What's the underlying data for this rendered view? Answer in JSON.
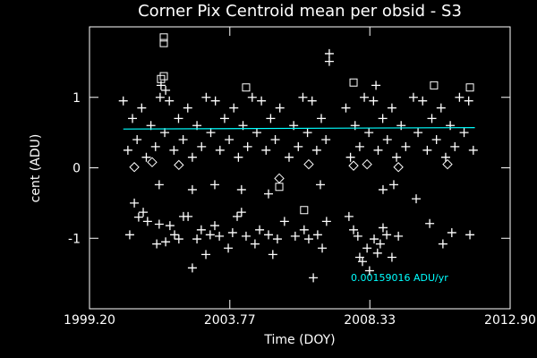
{
  "chart_data": {
    "type": "scatter",
    "title": "Corner Pix Centroid mean per obsid - S3",
    "x_label": "Time (DOY)",
    "y_label": "cent (ADU)",
    "annotation": "0.00159016 ADU/yr",
    "background": "#000000",
    "axis_color": "#ffffff",
    "xlim": [
      1999.2,
      2012.9
    ],
    "xticks": [
      {
        "value": 1999.2,
        "label": "1999.20"
      },
      {
        "value": 2003.77,
        "label": "2003.77"
      },
      {
        "value": 2008.33,
        "label": "2008.33"
      },
      {
        "value": 2012.9,
        "label": "2012.90"
      }
    ],
    "ylim": [
      -2,
      2
    ],
    "yticks": [
      -1,
      0,
      1
    ],
    "series": [
      {
        "marker": "plus",
        "color": "#ffffff",
        "x": [
          2000.3,
          2000.45,
          2000.6,
          2000.75,
          2000.9,
          2001.05,
          2001.2,
          2001.35,
          2001.5,
          2001.65,
          2001.8,
          2001.95,
          2002.1,
          2002.25,
          2002.4,
          2002.55,
          2002.7,
          2002.85,
          2003.0,
          2003.15,
          2003.3,
          2003.45,
          2003.6,
          2003.75,
          2003.9,
          2004.05,
          2004.2,
          2004.35,
          2004.5,
          2004.65,
          2004.8,
          2004.95,
          2005.1,
          2005.25,
          2005.4,
          2005.7,
          2005.85,
          2006.0,
          2006.15,
          2006.3,
          2006.45,
          2006.6,
          2006.75,
          2006.9,
          2007.55,
          2007.7,
          2007.85,
          2008.0,
          2008.15,
          2008.3,
          2008.45,
          2008.6,
          2008.75,
          2008.9,
          2009.05,
          2009.2,
          2009.35,
          2009.5,
          2009.75,
          2009.9,
          2010.05,
          2010.2,
          2010.35,
          2010.5,
          2010.65,
          2010.8,
          2010.95,
          2011.1,
          2011.25,
          2011.4,
          2011.55,
          2011.7
        ],
        "values": [
          0.95,
          0.25,
          0.7,
          0.4,
          0.85,
          0.15,
          0.6,
          0.3,
          1.0,
          0.5,
          0.95,
          0.25,
          0.7,
          0.4,
          0.85,
          0.15,
          0.6,
          0.3,
          1.0,
          0.5,
          0.95,
          0.25,
          0.7,
          0.4,
          0.85,
          0.15,
          0.6,
          0.3,
          1.0,
          0.5,
          0.95,
          0.25,
          0.7,
          0.4,
          0.85,
          0.15,
          0.6,
          0.3,
          1.0,
          0.5,
          0.95,
          0.25,
          0.7,
          0.4,
          0.85,
          0.15,
          0.6,
          0.3,
          1.0,
          0.5,
          0.95,
          0.25,
          0.7,
          0.4,
          0.85,
          0.15,
          0.6,
          0.3,
          1.0,
          0.5,
          0.95,
          0.25,
          0.7,
          0.4,
          0.85,
          0.15,
          0.6,
          0.3,
          1.0,
          0.5,
          0.95,
          0.25
        ]
      },
      {
        "marker": "plus",
        "color": "#ffffff",
        "x": [
          2000.51,
          2000.66,
          2000.8,
          2000.95,
          2001.09,
          2001.39,
          2001.47,
          2001.68,
          2001.82,
          2001.97,
          2002.11,
          2002.26,
          2002.41,
          2002.55,
          2002.7,
          2002.84,
          2002.99,
          2003.13,
          2003.28,
          2003.43,
          2003.72,
          2003.86,
          2004.01,
          2004.15,
          2004.3,
          2004.59,
          2004.74,
          2005.03,
          2005.17,
          2005.32,
          2005.55,
          2005.9,
          2006.19,
          2006.34,
          2006.49,
          2006.63,
          2006.78,
          2006.92,
          2007.65,
          2007.8,
          2007.94,
          2008.0,
          2008.09,
          2008.24,
          2008.32,
          2008.47,
          2008.58,
          2008.67,
          2008.76,
          2008.88,
          2009.05,
          2009.26,
          2009.84,
          2010.28,
          2010.71,
          2011.0,
          2011.59,
          2001.47,
          2002.55,
          2003.28,
          2004.15,
          2005.03,
          2006.72,
          2008.76,
          2009.11,
          2001.53,
          2001.68,
          2007.01,
          2007.01,
          2008.53
        ],
        "values": [
          -0.95,
          -0.5,
          -0.7,
          -0.63,
          -0.76,
          -1.08,
          -0.8,
          -1.05,
          -0.82,
          -0.95,
          -1.01,
          -0.69,
          -0.69,
          -1.42,
          -1.01,
          -0.88,
          -1.23,
          -0.95,
          -0.82,
          -0.97,
          -1.14,
          -0.92,
          -0.69,
          -0.63,
          -0.97,
          -1.08,
          -0.88,
          -0.95,
          -1.23,
          -1.01,
          -0.76,
          -0.97,
          -0.88,
          -1.01,
          -1.56,
          -0.95,
          -1.14,
          -0.76,
          -0.69,
          -0.88,
          -0.97,
          -1.27,
          -1.33,
          -1.14,
          -1.46,
          -1.01,
          -1.21,
          -1.08,
          -0.85,
          -0.95,
          -1.27,
          -0.97,
          -0.44,
          -0.79,
          -1.08,
          -0.92,
          -0.95,
          -0.24,
          -0.31,
          -0.24,
          -0.31,
          -0.37,
          -0.24,
          -0.31,
          -0.24,
          1.17,
          1.1,
          1.62,
          1.51,
          1.17
        ]
      },
      {
        "marker": "square",
        "color": "#ffffff",
        "x": [
          2001.62,
          2001.62,
          2001.53,
          2001.62,
          2004.3,
          2005.38,
          2006.19,
          2011.59,
          2010.42,
          2007.8
        ],
        "values": [
          1.85,
          1.77,
          1.26,
          1.3,
          1.14,
          -0.27,
          -0.6,
          1.14,
          1.17,
          1.21
        ]
      },
      {
        "marker": "diamond",
        "color": "#ffffff",
        "x": [
          2000.66,
          2001.24,
          2002.11,
          2005.38,
          2006.34,
          2007.8,
          2008.24,
          2009.26,
          2010.86
        ],
        "values": [
          0.01,
          0.08,
          0.04,
          -0.15,
          0.05,
          0.03,
          0.05,
          0.01,
          0.05
        ]
      },
      {
        "marker": "line",
        "color": "#00ffff",
        "x": [
          2000.3,
          2011.75
        ],
        "values": [
          0.55,
          0.57
        ]
      }
    ]
  }
}
